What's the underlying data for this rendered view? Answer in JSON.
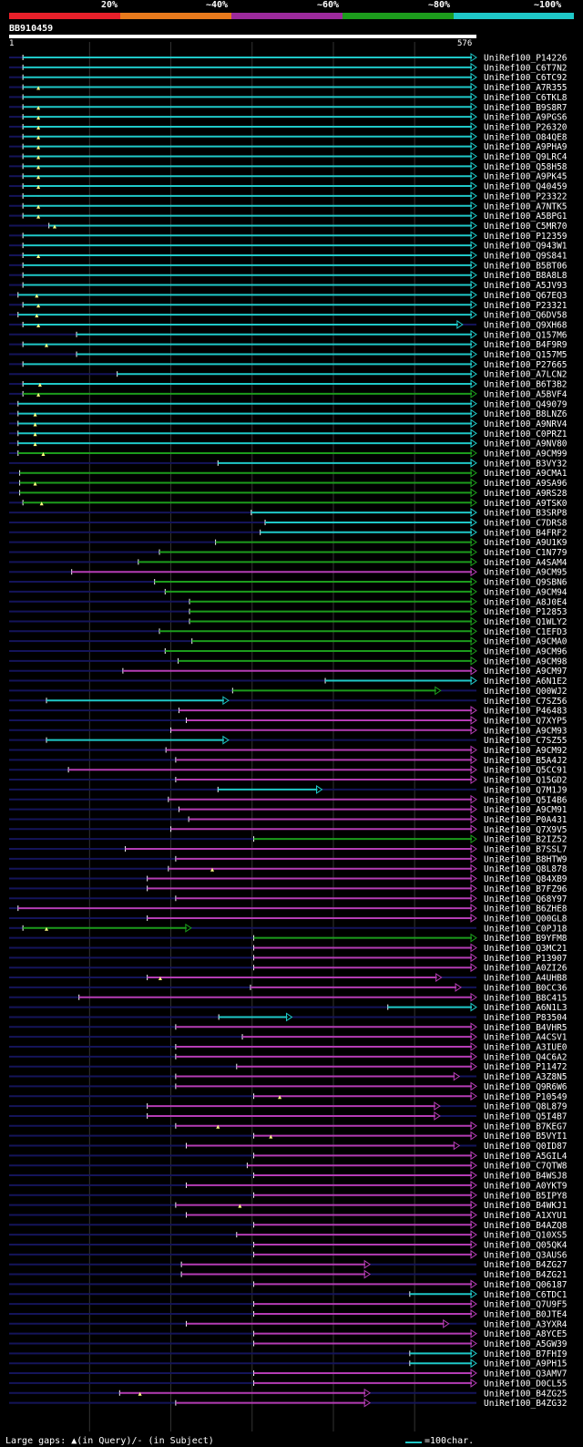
{
  "legend": {
    "ticks": [
      "20%",
      "~40%",
      "~60%",
      "~80%",
      "~100%"
    ],
    "colors": [
      "#e8202a",
      "#e87a1c",
      "#9c2a9c",
      "#1c9c1c",
      "#1fc8c8"
    ]
  },
  "query": {
    "name": "BB910459",
    "start": "1",
    "end": "576",
    "length": 576
  },
  "footer": {
    "note": "Large gaps: ▲(in Query)/- (in Subject)",
    "scale": "=100char."
  },
  "chart_data": {
    "type": "alignment-overview",
    "x_range": [
      1,
      576
    ],
    "colors": {
      "cyan": "#1fc8c8",
      "green": "#1c9c1c",
      "purple": "#b43cb4"
    },
    "hits": [
      {
        "name": "UniRef100_P14226",
        "start": 18,
        "end": 576,
        "color": "cyan"
      },
      {
        "name": "UniRef100_C6T7N2",
        "start": 18,
        "end": 576,
        "color": "cyan"
      },
      {
        "name": "UniRef100_C6TC92",
        "start": 18,
        "end": 576,
        "color": "cyan"
      },
      {
        "name": "UniRef100_A7R355",
        "start": 18,
        "end": 576,
        "color": "cyan",
        "gap": 37
      },
      {
        "name": "UniRef100_C6TKL8",
        "start": 18,
        "end": 576,
        "color": "cyan"
      },
      {
        "name": "UniRef100_B9S8R7",
        "start": 18,
        "end": 576,
        "color": "cyan",
        "gap": 37
      },
      {
        "name": "UniRef100_A9PGS6",
        "start": 18,
        "end": 576,
        "color": "cyan",
        "gap": 37
      },
      {
        "name": "UniRef100_P26320",
        "start": 18,
        "end": 576,
        "color": "cyan",
        "gap": 37
      },
      {
        "name": "UniRef100_O84QE8",
        "start": 18,
        "end": 576,
        "color": "cyan",
        "gap": 37
      },
      {
        "name": "UniRef100_A9PHA9",
        "start": 18,
        "end": 576,
        "color": "cyan",
        "gap": 37
      },
      {
        "name": "UniRef100_Q9LRC4",
        "start": 18,
        "end": 576,
        "color": "cyan",
        "gap": 37
      },
      {
        "name": "UniRef100_Q58H58",
        "start": 18,
        "end": 576,
        "color": "cyan",
        "gap": 37
      },
      {
        "name": "UniRef100_A9PK45",
        "start": 18,
        "end": 576,
        "color": "cyan",
        "gap": 37
      },
      {
        "name": "UniRef100_Q40459",
        "start": 18,
        "end": 576,
        "color": "cyan",
        "gap": 37
      },
      {
        "name": "UniRef100_P23322",
        "start": 18,
        "end": 576,
        "color": "cyan"
      },
      {
        "name": "UniRef100_A7NTK5",
        "start": 18,
        "end": 576,
        "color": "cyan",
        "gap": 37
      },
      {
        "name": "UniRef100_A5BPG1",
        "start": 18,
        "end": 576,
        "color": "cyan",
        "gap": 37
      },
      {
        "name": "UniRef100_C5MR70",
        "start": 50,
        "end": 576,
        "color": "cyan",
        "gap": 57
      },
      {
        "name": "UniRef100_P12359",
        "start": 18,
        "end": 576,
        "color": "cyan"
      },
      {
        "name": "UniRef100_Q943W1",
        "start": 18,
        "end": 576,
        "color": "cyan"
      },
      {
        "name": "UniRef100_Q9S841",
        "start": 18,
        "end": 576,
        "color": "cyan",
        "gap": 37
      },
      {
        "name": "UniRef100_B5BT06",
        "start": 18,
        "end": 576,
        "color": "cyan"
      },
      {
        "name": "UniRef100_B8A8L8",
        "start": 18,
        "end": 576,
        "color": "cyan"
      },
      {
        "name": "UniRef100_A5JV93",
        "start": 18,
        "end": 576,
        "color": "cyan"
      },
      {
        "name": "UniRef100_Q67EQ3",
        "start": 12,
        "end": 576,
        "color": "cyan",
        "gap": 35
      },
      {
        "name": "UniRef100_P23321",
        "start": 18,
        "end": 576,
        "color": "cyan",
        "gap": 37
      },
      {
        "name": "UniRef100_Q6DV58",
        "start": 12,
        "end": 576,
        "color": "cyan",
        "gap": 35
      },
      {
        "name": "UniRef100_Q9XH68",
        "start": 18,
        "end": 559,
        "color": "cyan",
        "gap": 37
      },
      {
        "name": "UniRef100_Q157M6",
        "start": 84,
        "end": 576,
        "color": "cyan"
      },
      {
        "name": "UniRef100_B4F9R9",
        "start": 18,
        "end": 576,
        "color": "cyan",
        "gap": 47
      },
      {
        "name": "UniRef100_Q157M5",
        "start": 84,
        "end": 576,
        "color": "cyan"
      },
      {
        "name": "UniRef100_P27665",
        "start": 18,
        "end": 576,
        "color": "cyan"
      },
      {
        "name": "UniRef100_A7LCN2",
        "start": 134,
        "end": 576,
        "color": "cyan"
      },
      {
        "name": "UniRef100_B6T3B2",
        "start": 18,
        "end": 576,
        "color": "cyan",
        "gap": 39
      },
      {
        "name": "UniRef100_A5BVF4",
        "start": 18,
        "end": 576,
        "color": "green",
        "gap": 37
      },
      {
        "name": "UniRef100_Q49079",
        "start": 12,
        "end": 576,
        "color": "cyan"
      },
      {
        "name": "UniRef100_B8LNZ6",
        "start": 12,
        "end": 576,
        "color": "cyan",
        "gap": 33
      },
      {
        "name": "UniRef100_A9NRV4",
        "start": 12,
        "end": 576,
        "color": "cyan",
        "gap": 33
      },
      {
        "name": "UniRef100_C0PRZ1",
        "start": 12,
        "end": 576,
        "color": "cyan",
        "gap": 33
      },
      {
        "name": "UniRef100_A9NV80",
        "start": 12,
        "end": 576,
        "color": "cyan",
        "gap": 33
      },
      {
        "name": "UniRef100_A9CM99",
        "start": 12,
        "end": 576,
        "color": "green",
        "gap": 43
      },
      {
        "name": "UniRef100_B3VY32",
        "start": 258,
        "end": 576,
        "color": "cyan"
      },
      {
        "name": "UniRef100_A9CMA1",
        "start": 14,
        "end": 576,
        "color": "green"
      },
      {
        "name": "UniRef100_A9SA96",
        "start": 14,
        "end": 576,
        "color": "green",
        "gap": 33
      },
      {
        "name": "UniRef100_A9RS28",
        "start": 14,
        "end": 576,
        "color": "green"
      },
      {
        "name": "UniRef100_A9TSK0",
        "start": 18,
        "end": 576,
        "color": "green",
        "gap": 41
      },
      {
        "name": "UniRef100_B3SRP8",
        "start": 299,
        "end": 576,
        "color": "cyan"
      },
      {
        "name": "UniRef100_C7DRS8",
        "start": 316,
        "end": 576,
        "color": "cyan"
      },
      {
        "name": "UniRef100_B4FRF2",
        "start": 310,
        "end": 576,
        "color": "cyan"
      },
      {
        "name": "UniRef100_A9U1K9",
        "start": 255,
        "end": 576,
        "color": "green"
      },
      {
        "name": "UniRef100_C1N779",
        "start": 186,
        "end": 576,
        "color": "green"
      },
      {
        "name": "UniRef100_A4SAM4",
        "start": 160,
        "end": 576,
        "color": "green"
      },
      {
        "name": "UniRef100_A9CM95",
        "start": 78,
        "end": 576,
        "color": "purple"
      },
      {
        "name": "UniRef100_Q9SBN6",
        "start": 180,
        "end": 576,
        "color": "green"
      },
      {
        "name": "UniRef100_A9CM94",
        "start": 193,
        "end": 576,
        "color": "green"
      },
      {
        "name": "UniRef100_A8J0E4",
        "start": 223,
        "end": 576,
        "color": "green"
      },
      {
        "name": "UniRef100_P12853",
        "start": 223,
        "end": 576,
        "color": "green"
      },
      {
        "name": "UniRef100_Q1WLY2",
        "start": 223,
        "end": 576,
        "color": "green"
      },
      {
        "name": "UniRef100_C1EFD3",
        "start": 186,
        "end": 576,
        "color": "green"
      },
      {
        "name": "UniRef100_A9CMA0",
        "start": 226,
        "end": 576,
        "color": "green"
      },
      {
        "name": "UniRef100_A9CM96",
        "start": 193,
        "end": 576,
        "color": "green"
      },
      {
        "name": "UniRef100_A9CM98",
        "start": 209,
        "end": 576,
        "color": "green"
      },
      {
        "name": "UniRef100_A9CM97",
        "start": 141,
        "end": 576,
        "color": "purple"
      },
      {
        "name": "UniRef100_A6N1E2",
        "start": 390,
        "end": 576,
        "color": "cyan"
      },
      {
        "name": "UniRef100_Q00WJ2",
        "start": 276,
        "end": 532,
        "color": "green"
      },
      {
        "name": "UniRef100_C7SZ56",
        "start": 47,
        "end": 271,
        "color": "cyan"
      },
      {
        "name": "UniRef100_P46483",
        "start": 210,
        "end": 576,
        "color": "purple"
      },
      {
        "name": "UniRef100_Q7XYP5",
        "start": 219,
        "end": 576,
        "color": "purple"
      },
      {
        "name": "UniRef100_A9CM93",
        "start": 200,
        "end": 576,
        "color": "purple"
      },
      {
        "name": "UniRef100_C7SZ55",
        "start": 47,
        "end": 271,
        "color": "cyan"
      },
      {
        "name": "UniRef100_A9CM92",
        "start": 194,
        "end": 576,
        "color": "purple"
      },
      {
        "name": "UniRef100_B5A4J2",
        "start": 206,
        "end": 576,
        "color": "purple"
      },
      {
        "name": "UniRef100_Q5CC91",
        "start": 74,
        "end": 576,
        "color": "purple"
      },
      {
        "name": "UniRef100_Q15GD2",
        "start": 206,
        "end": 576,
        "color": "purple"
      },
      {
        "name": "UniRef100_Q7M1J9",
        "start": 258,
        "end": 386,
        "color": "cyan"
      },
      {
        "name": "UniRef100_Q5I4B6",
        "start": 197,
        "end": 576,
        "color": "purple"
      },
      {
        "name": "UniRef100_A9CM91",
        "start": 210,
        "end": 576,
        "color": "purple"
      },
      {
        "name": "UniRef100_P0A431",
        "start": 222,
        "end": 576,
        "color": "purple"
      },
      {
        "name": "UniRef100_Q7X9V5",
        "start": 200,
        "end": 576,
        "color": "purple"
      },
      {
        "name": "UniRef100_B2IZ52",
        "start": 302,
        "end": 576,
        "color": "green"
      },
      {
        "name": "UniRef100_B7SSL7",
        "start": 144,
        "end": 576,
        "color": "purple"
      },
      {
        "name": "UniRef100_B8HTW9",
        "start": 206,
        "end": 576,
        "color": "purple"
      },
      {
        "name": "UniRef100_Q8L878",
        "start": 197,
        "end": 576,
        "color": "purple",
        "gap": 251
      },
      {
        "name": "UniRef100_Q84XB9",
        "start": 171,
        "end": 576,
        "color": "purple"
      },
      {
        "name": "UniRef100_B7FZ96",
        "start": 171,
        "end": 576,
        "color": "purple"
      },
      {
        "name": "UniRef100_Q68Y97",
        "start": 206,
        "end": 576,
        "color": "purple"
      },
      {
        "name": "UniRef100_B6ZHE8",
        "start": 12,
        "end": 576,
        "color": "purple"
      },
      {
        "name": "UniRef100_Q00GL8",
        "start": 171,
        "end": 576,
        "color": "purple"
      },
      {
        "name": "UniRef100_C0PJ18",
        "start": 18,
        "end": 225,
        "color": "green",
        "gap": 47
      },
      {
        "name": "UniRef100_B9YFM8",
        "start": 302,
        "end": 576,
        "color": "green"
      },
      {
        "name": "UniRef100_Q3MC21",
        "start": 302,
        "end": 576,
        "color": "purple"
      },
      {
        "name": "UniRef100_P13907",
        "start": 302,
        "end": 576,
        "color": "purple"
      },
      {
        "name": "UniRef100_A0ZI26",
        "start": 302,
        "end": 576,
        "color": "purple"
      },
      {
        "name": "UniRef100_A4UHB8",
        "start": 171,
        "end": 533,
        "color": "purple",
        "gap": 187
      },
      {
        "name": "UniRef100_B0CC36",
        "start": 298,
        "end": 557,
        "color": "purple"
      },
      {
        "name": "UniRef100_B8C415",
        "start": 87,
        "end": 576,
        "color": "purple"
      },
      {
        "name": "UniRef100_A6N1L3",
        "start": 467,
        "end": 576,
        "color": "cyan"
      },
      {
        "name": "UniRef100_P83504",
        "start": 259,
        "end": 349,
        "color": "cyan"
      },
      {
        "name": "UniRef100_B4VHR5",
        "start": 206,
        "end": 576,
        "color": "purple"
      },
      {
        "name": "UniRef100_A4CSV1",
        "start": 288,
        "end": 576,
        "color": "purple"
      },
      {
        "name": "UniRef100_A3IUE0",
        "start": 206,
        "end": 576,
        "color": "purple"
      },
      {
        "name": "UniRef100_Q4C6A2",
        "start": 206,
        "end": 576,
        "color": "purple"
      },
      {
        "name": "UniRef100_P11472",
        "start": 281,
        "end": 576,
        "color": "purple"
      },
      {
        "name": "UniRef100_A3Z8N5",
        "start": 206,
        "end": 555,
        "color": "purple"
      },
      {
        "name": "UniRef100_Q9R6W6",
        "start": 206,
        "end": 576,
        "color": "purple"
      },
      {
        "name": "UniRef100_P10549",
        "start": 302,
        "end": 576,
        "color": "purple",
        "gap": 334
      },
      {
        "name": "UniRef100_Q8L879",
        "start": 171,
        "end": 531,
        "color": "purple"
      },
      {
        "name": "UniRef100_Q5I4B7",
        "start": 171,
        "end": 531,
        "color": "purple"
      },
      {
        "name": "UniRef100_B7KEG7",
        "start": 206,
        "end": 576,
        "color": "purple",
        "gap": 258
      },
      {
        "name": "UniRef100_B5VYI1",
        "start": 302,
        "end": 576,
        "color": "purple",
        "gap": 323
      },
      {
        "name": "UniRef100_Q0ID87",
        "start": 219,
        "end": 555,
        "color": "purple"
      },
      {
        "name": "UniRef100_A5GIL4",
        "start": 302,
        "end": 576,
        "color": "purple"
      },
      {
        "name": "UniRef100_C7QTW8",
        "start": 294,
        "end": 576,
        "color": "purple"
      },
      {
        "name": "UniRef100_B4WSJ8",
        "start": 302,
        "end": 576,
        "color": "purple"
      },
      {
        "name": "UniRef100_A0YKT9",
        "start": 219,
        "end": 576,
        "color": "purple"
      },
      {
        "name": "UniRef100_B5IPY8",
        "start": 302,
        "end": 576,
        "color": "purple"
      },
      {
        "name": "UniRef100_B4WKJ1",
        "start": 206,
        "end": 576,
        "color": "purple",
        "gap": 285
      },
      {
        "name": "UniRef100_A1XYU1",
        "start": 219,
        "end": 576,
        "color": "purple"
      },
      {
        "name": "UniRef100_B4AZQ8",
        "start": 302,
        "end": 576,
        "color": "purple"
      },
      {
        "name": "UniRef100_Q10XS5",
        "start": 281,
        "end": 576,
        "color": "purple"
      },
      {
        "name": "UniRef100_Q05QK4",
        "start": 302,
        "end": 576,
        "color": "purple"
      },
      {
        "name": "UniRef100_Q3AUS6",
        "start": 302,
        "end": 576,
        "color": "purple"
      },
      {
        "name": "UniRef100_B4ZG27",
        "start": 213,
        "end": 445,
        "color": "purple"
      },
      {
        "name": "UniRef100_B4ZG21",
        "start": 213,
        "end": 445,
        "color": "purple"
      },
      {
        "name": "UniRef100_Q06187",
        "start": 302,
        "end": 576,
        "color": "purple"
      },
      {
        "name": "UniRef100_C6TDC1",
        "start": 494,
        "end": 576,
        "color": "cyan"
      },
      {
        "name": "UniRef100_Q7U9F5",
        "start": 302,
        "end": 576,
        "color": "purple"
      },
      {
        "name": "UniRef100_B0JTE4",
        "start": 302,
        "end": 576,
        "color": "purple"
      },
      {
        "name": "UniRef100_A3YXR4",
        "start": 219,
        "end": 542,
        "color": "purple"
      },
      {
        "name": "UniRef100_A8YCE5",
        "start": 302,
        "end": 576,
        "color": "purple"
      },
      {
        "name": "UniRef100_A5GW39",
        "start": 302,
        "end": 576,
        "color": "purple"
      },
      {
        "name": "UniRef100_B7FHI9",
        "start": 494,
        "end": 576,
        "color": "cyan"
      },
      {
        "name": "UniRef100_A9PH15",
        "start": 494,
        "end": 576,
        "color": "cyan"
      },
      {
        "name": "UniRef100_Q3AMV7",
        "start": 302,
        "end": 576,
        "color": "purple"
      },
      {
        "name": "UniRef100_D0CL55",
        "start": 302,
        "end": 576,
        "color": "purple"
      },
      {
        "name": "UniRef100_B4ZG25",
        "start": 137,
        "end": 445,
        "color": "purple",
        "gap": 162
      },
      {
        "name": "UniRef100_B4ZG32",
        "start": 206,
        "end": 445,
        "color": "purple"
      }
    ]
  }
}
